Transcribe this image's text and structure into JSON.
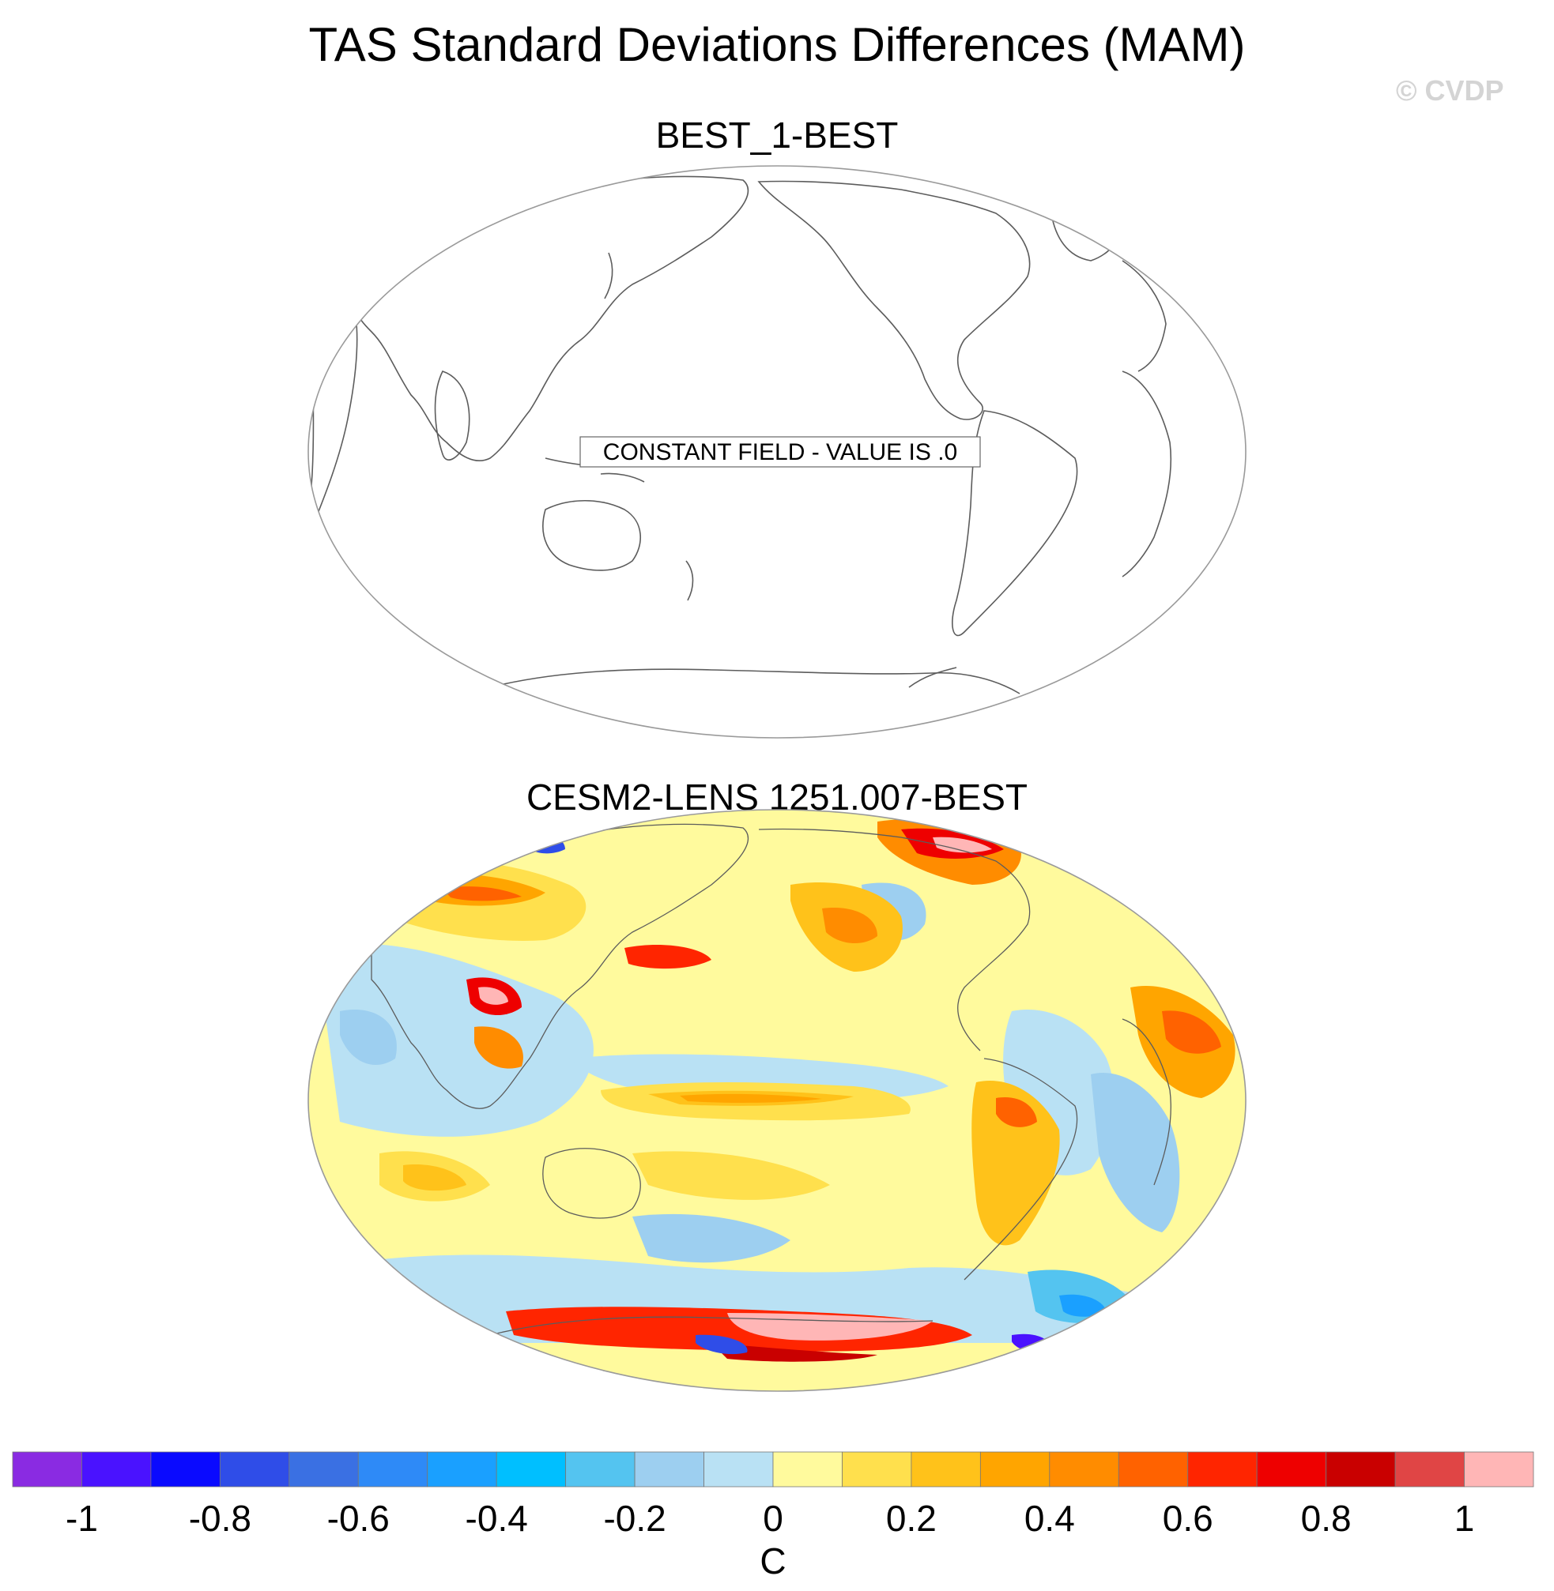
{
  "title": "TAS Standard Deviations Differences (MAM)",
  "watermark": "© CVDP",
  "panels": [
    {
      "title": "BEST_1-BEST",
      "annotation": "CONSTANT FIELD - VALUE IS .0"
    },
    {
      "title": "CESM2-LENS 1251.007-BEST"
    }
  ],
  "colorbar": {
    "unit": "C",
    "labels": [
      "-1",
      "-0.8",
      "-0.6",
      "-0.4",
      "-0.2",
      "0",
      "0.2",
      "0.4",
      "0.6",
      "0.8",
      "1"
    ],
    "colors": [
      "#8a2be2",
      "#4a12ff",
      "#0a0aff",
      "#2f4de8",
      "#3a70e3",
      "#2e8af7",
      "#1aa0ff",
      "#00bfff",
      "#54c4f0",
      "#9dcff0",
      "#b9e1f4",
      "#fffa9d",
      "#ffe04d",
      "#ffc21a",
      "#ffa500",
      "#ff8c00",
      "#ff6200",
      "#ff2500",
      "#ee0000",
      "#c90000",
      "#e04545",
      "#ffb6b6"
    ]
  },
  "colors": {
    "land_outline": "#5c5c5c",
    "frame": "#9a9a9a"
  }
}
